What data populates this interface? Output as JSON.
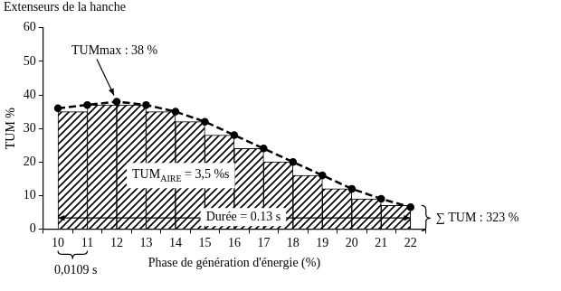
{
  "chart_data": {
    "type": "histogram",
    "title": "Extenseurs de la hanche",
    "x_label": "Phase de génération d'énergie (%)",
    "y_label": "TUM %",
    "bins": [
      10,
      11,
      12,
      13,
      14,
      15,
      16,
      17,
      18,
      19,
      20,
      21,
      22
    ],
    "series": [
      {
        "type": "bar",
        "color": "#000000",
        "values": [
          35,
          37,
          37,
          35,
          32,
          28,
          24,
          20,
          16,
          12,
          9,
          7
        ]
      },
      {
        "type": "line",
        "color": "#000000",
        "line_style": "dashed",
        "marker": "circle",
        "x": [
          10,
          11,
          12,
          13,
          14,
          15,
          16,
          17,
          18,
          19,
          20,
          21,
          22
        ],
        "values": [
          36,
          37,
          38,
          37,
          35,
          32,
          28,
          24,
          20,
          16,
          12,
          9,
          6.5
        ]
      }
    ],
    "xlim": [
      9.5,
      22.5
    ],
    "xticks": [
      10,
      11,
      12,
      13,
      14,
      15,
      16,
      17,
      18,
      19,
      20,
      21,
      22
    ],
    "ylim": [
      0,
      60
    ],
    "yticks": [
      0,
      10,
      20,
      30,
      40,
      50,
      60
    ],
    "grid": false,
    "annotations": [
      {
        "text": "TUMmax : 38 %"
      },
      {
        "text": "TUM",
        "subscript": "AIRE",
        "text_after": " = 3,5 %s"
      },
      {
        "text": "Durée = 0.13 s"
      },
      {
        "text": "∑ TUM : 323 %"
      },
      {
        "text": "0,0109 s"
      }
    ]
  }
}
